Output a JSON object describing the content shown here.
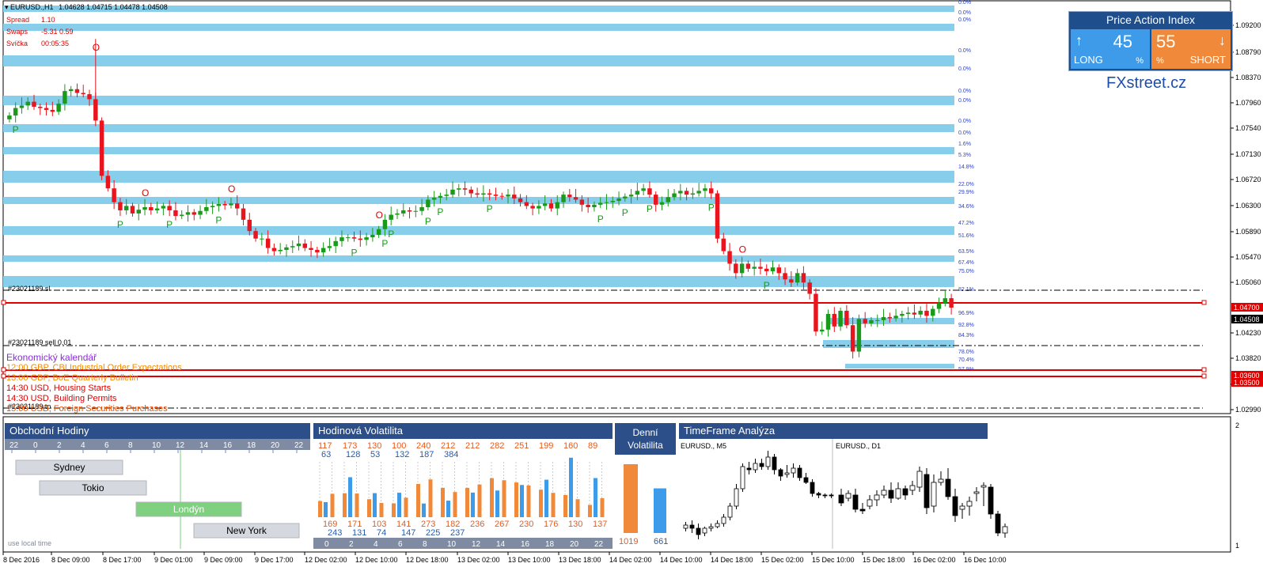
{
  "header": {
    "symbol": "EURUSD.,H1",
    "ohlc": "1.04628 1.04715 1.04478 1.04508"
  },
  "info": [
    {
      "label": "Spread",
      "value": "1.10"
    },
    {
      "label": "Swaps",
      "value": "-5.31 0.59"
    },
    {
      "label": "Svíčka",
      "value": "00:05:35"
    }
  ],
  "price_axis": {
    "labels": [
      "1.09200",
      "1.08790",
      "1.08370",
      "1.07960",
      "1.07540",
      "1.07130",
      "1.06720",
      "1.06300",
      "1.05890",
      "1.05470",
      "1.05060",
      "1.04230",
      "1.03820",
      "1.03400",
      "1.02990"
    ],
    "tags": [
      {
        "text": "1.04700",
        "color": "#e00000"
      },
      {
        "text": "1.04508",
        "color": "#000000"
      },
      {
        "text": "1.03600",
        "color": "#e00000"
      },
      {
        "text": "1.03500",
        "color": "#e00000"
      }
    ]
  },
  "percent_labels": [
    "0.0%",
    "0.0%",
    "0.0%",
    "0.0%",
    "0.0%",
    "0.0%",
    "0.0%",
    "0.0%",
    "0.0%",
    "1.6%",
    "5.3%",
    "14.8%",
    "22.0%",
    "29.9%",
    "34.6%",
    "47.2%",
    "51.6%",
    "63.5%",
    "67.4%",
    "75.0%",
    "82.1%",
    "96.9%",
    "92.8%",
    "84.3%",
    "78.0%",
    "70.4%",
    "57.9%"
  ],
  "order_labels": {
    "sl": "#23021189 sl",
    "sell": "#23021189 sell 0.01",
    "tp": "#23021189 tp"
  },
  "price_action_index": {
    "title": "Price Action Index",
    "long_value": "45",
    "long_label": "LONG",
    "short_value": "55",
    "short_label": "SHORT",
    "percent": "%",
    "long_arrow": "↑",
    "short_arrow": "↓"
  },
  "brand": "FXstreet.cz",
  "calendar": {
    "title": "Ekonomický kalendář",
    "events": [
      {
        "text": "12:00 GBP, CBI Industrial Order Expectations",
        "color": "#f08a00"
      },
      {
        "text": "13:00 GBP, BoE Quarterly Bulletin",
        "color": "#f08a00"
      },
      {
        "text": "14:30 USD, Housing Starts",
        "color": "#e00000"
      },
      {
        "text": "14:30 USD, Building Permits",
        "color": "#e00000"
      },
      {
        "text": "15:00 USD, Foreign Securities Purchases",
        "color": "#f05000"
      }
    ]
  },
  "trading_hours": {
    "title": "Obchodní Hodiny",
    "hours": [
      "22",
      "0",
      "2",
      "4",
      "6",
      "8",
      "10",
      "12",
      "14",
      "16",
      "18",
      "20",
      "22"
    ],
    "sessions": [
      {
        "name": "Sydney",
        "active": false
      },
      {
        "name": "Tokio",
        "active": false
      },
      {
        "name": "Londýn",
        "active": true
      },
      {
        "name": "New York",
        "active": false
      }
    ],
    "footer": "use local time"
  },
  "hourly_volatility": {
    "title": "Hodinová Volatilita",
    "top_orange": [
      "117",
      "173",
      "130",
      "100",
      "240",
      "212",
      "212",
      "282",
      "251",
      "199",
      "160",
      "89"
    ],
    "top_blue": [
      "63",
      "128",
      "53",
      "132",
      "187",
      "384"
    ],
    "bottom_orange": [
      "169",
      "171",
      "103",
      "141",
      "273",
      "182",
      "236",
      "267",
      "230",
      "176",
      "130",
      "137"
    ],
    "bottom_blue": [
      "243",
      "131",
      "74",
      "147",
      "225",
      "237"
    ],
    "hours": [
      "0",
      "2",
      "4",
      "6",
      "8",
      "10",
      "12",
      "14",
      "16",
      "18",
      "20",
      "22"
    ],
    "orange_values": [
      117,
      169,
      173,
      171,
      130,
      103,
      100,
      141,
      240,
      273,
      212,
      182,
      212,
      236,
      282,
      267,
      251,
      230,
      199,
      176,
      160,
      130,
      89,
      137
    ],
    "blue_values": [
      63,
      243,
      128,
      131,
      53,
      74,
      132,
      147,
      187,
      225,
      384,
      237
    ]
  },
  "daily_volatility": {
    "title_line1": "Denní",
    "title_line2": "Volatilita",
    "orange_value": "1019",
    "blue_value": "661",
    "orange_num": 1019,
    "blue_num": 661
  },
  "timeframe_analysis": {
    "title": "TimeFrame Analýza",
    "left_label": "EURUSD., M5",
    "right_label": "EURUSD., D1"
  },
  "indicator_axis": {
    "top": "2",
    "bottom": "1"
  },
  "time_axis": [
    "8 Dec 2016",
    "8 Dec 09:00",
    "8 Dec 17:00",
    "9 Dec 01:00",
    "9 Dec 09:00",
    "9 Dec 17:00",
    "12 Dec 02:00",
    "12 Dec 10:00",
    "12 Dec 18:00",
    "13 Dec 02:00",
    "13 Dec 10:00",
    "13 Dec 18:00",
    "14 Dec 02:00",
    "14 Dec 10:00",
    "14 Dec 18:00",
    "15 Dec 02:00",
    "15 Dec 10:00",
    "15 Dec 18:00",
    "16 Dec 02:00",
    "16 Dec 10:00"
  ],
  "colors": {
    "bull": "#1a9a1a",
    "bear": "#e8141e",
    "zone": "#87ceeb",
    "panel_header": "#2c4f8a",
    "orange": "#f08a3a",
    "blue": "#3e9bea"
  },
  "chart_data": {
    "type": "candlestick",
    "symbol": "EURUSD.,H1",
    "y_range": [
      1.0285,
      1.0935
    ],
    "closes": [
      1.0756,
      1.0768,
      1.0772,
      1.0778,
      1.077,
      1.0768,
      1.0765,
      1.0762,
      1.0775,
      1.0795,
      1.0798,
      1.0792,
      1.079,
      1.0782,
      1.0748,
      1.066,
      1.064,
      1.0618,
      1.0605,
      1.0612,
      1.06,
      1.0606,
      1.061,
      1.0605,
      1.0608,
      1.0612,
      1.0605,
      1.0596,
      1.0598,
      1.0602,
      1.0598,
      1.0604,
      1.061,
      1.0612,
      1.0615,
      1.0613,
      1.0616,
      1.0608,
      1.059,
      1.0572,
      1.056,
      1.056,
      1.0545,
      1.054,
      1.0542,
      1.0546,
      1.0548,
      1.0552,
      1.0545,
      1.0542,
      1.0538,
      1.0545,
      1.0548,
      1.0556,
      1.0562,
      1.0562,
      1.056,
      1.0558,
      1.0562,
      1.0566,
      1.0575,
      1.059,
      1.0598,
      1.06,
      1.0605,
      1.0603,
      1.0604,
      1.061,
      1.0622,
      1.0625,
      1.0628,
      1.063,
      1.0638,
      1.064,
      1.0638,
      1.0632,
      1.063,
      1.0632,
      1.063,
      1.0628,
      1.0627,
      1.063,
      1.0624,
      1.0618,
      1.0612,
      1.0608,
      1.0612,
      1.0616,
      1.0608,
      1.0618,
      1.063,
      1.0626,
      1.0622,
      1.0614,
      1.061,
      1.0614,
      1.0617,
      1.0618,
      1.062,
      1.0624,
      1.0627,
      1.063,
      1.0636,
      1.064,
      1.063,
      1.0614,
      1.0618,
      1.0626,
      1.0632,
      1.0636,
      1.063,
      1.0632,
      1.0636,
      1.064,
      1.0632,
      1.056,
      1.054,
      1.052,
      1.0505,
      1.052,
      1.0512,
      1.0515,
      1.0512,
      1.0508,
      1.0514,
      1.0505,
      1.0495,
      1.049,
      1.0505,
      1.049,
      1.0472,
      1.0412,
      1.0415,
      1.044,
      1.042,
      1.0445,
      1.0422,
      1.038,
      1.0432,
      1.0425,
      1.043,
      1.043,
      1.0435,
      1.0433,
      1.0437,
      1.044,
      1.0442,
      1.0439,
      1.0445,
      1.0437,
      1.0448,
      1.0457,
      1.0465,
      1.045
    ],
    "markers": [
      {
        "index": 1,
        "type": "P"
      },
      {
        "index": 14,
        "type": "O"
      },
      {
        "index": 18,
        "type": "P"
      },
      {
        "index": 22,
        "type": "O"
      },
      {
        "index": 26,
        "type": "P"
      },
      {
        "index": 34,
        "type": "P"
      },
      {
        "index": 36,
        "type": "O"
      },
      {
        "index": 56,
        "type": "P"
      },
      {
        "index": 60,
        "type": "O"
      },
      {
        "index": 61,
        "type": "P"
      },
      {
        "index": 62,
        "type": "P"
      },
      {
        "index": 68,
        "type": "P"
      },
      {
        "index": 70,
        "type": "P"
      },
      {
        "index": 78,
        "type": "P"
      },
      {
        "index": 96,
        "type": "P"
      },
      {
        "index": 100,
        "type": "P"
      },
      {
        "index": 104,
        "type": "P"
      },
      {
        "index": 114,
        "type": "P"
      },
      {
        "index": 119,
        "type": "O"
      },
      {
        "index": 123,
        "type": "P"
      },
      {
        "index": 157,
        "type": "O"
      },
      {
        "index": 160,
        "type": "P"
      },
      {
        "index": 161,
        "type": "O"
      },
      {
        "index": 166,
        "type": "O"
      }
    ]
  }
}
